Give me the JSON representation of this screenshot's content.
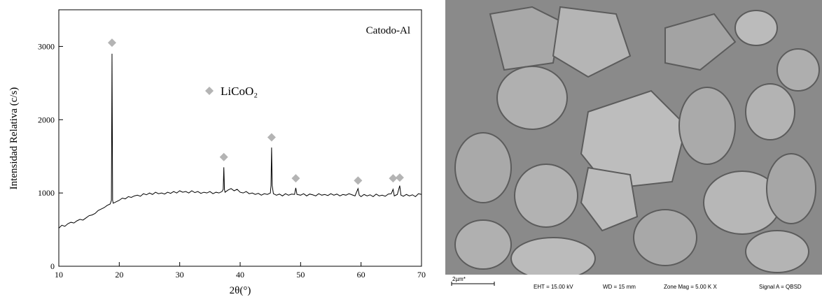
{
  "chart_data": {
    "type": "line",
    "xlabel": "2θ(°)",
    "ylabel": "Intensidad Relativa (c/s)",
    "annotation": "Catodo-Al",
    "xlim": [
      10,
      70
    ],
    "ylim": [
      0,
      3500
    ],
    "xticks": [
      10,
      20,
      30,
      40,
      50,
      60,
      70
    ],
    "yticks": [
      0,
      1000,
      2000,
      3000
    ],
    "legend": "upper center",
    "series": [
      {
        "color": "#000000",
        "x": [
          10,
          10.5,
          11,
          11.5,
          12,
          12.5,
          13,
          13.5,
          14,
          14.5,
          15,
          15.5,
          16,
          16.5,
          17,
          17.5,
          18,
          18.5,
          18.7,
          18.8,
          18.9,
          19,
          19.5,
          20,
          20.5,
          21,
          21.5,
          22,
          22.5,
          23,
          23.5,
          24,
          24.5,
          25,
          25.5,
          26,
          26.5,
          27,
          27.5,
          28,
          28.5,
          29,
          29.5,
          30,
          30.5,
          31,
          31.5,
          32,
          32.5,
          33,
          33.5,
          34,
          34.5,
          35,
          35.5,
          36,
          36.5,
          37,
          37.2,
          37.3,
          37.4,
          37.5,
          38,
          38.5,
          39,
          39.5,
          40,
          40.5,
          41,
          41.5,
          42,
          42.5,
          43,
          43.5,
          44,
          44.5,
          45,
          45.1,
          45.2,
          45.3,
          45.5,
          46,
          46.5,
          47,
          47.5,
          48,
          48.5,
          49,
          49.2,
          49.4,
          50,
          50.5,
          51,
          51.5,
          52,
          52.5,
          53,
          53.5,
          54,
          54.5,
          55,
          55.5,
          56,
          56.5,
          57,
          57.5,
          58,
          58.5,
          59,
          59.5,
          59.7,
          60,
          60.5,
          61,
          61.5,
          62,
          62.5,
          63,
          63.5,
          64,
          64.5,
          65,
          65.3,
          65.5,
          66,
          66.4,
          66.6,
          67,
          67.5,
          68,
          68.5,
          69,
          69.5,
          70
        ],
        "values": [
          520,
          560,
          545,
          580,
          600,
          590,
          620,
          640,
          630,
          660,
          690,
          700,
          720,
          760,
          780,
          800,
          830,
          850,
          900,
          2900,
          900,
          860,
          880,
          900,
          930,
          920,
          950,
          940,
          960,
          970,
          955,
          990,
          975,
          1000,
          980,
          1010,
          990,
          1000,
          985,
          1010,
          995,
          1020,
          1000,
          1030,
          1010,
          1020,
          1000,
          1030,
          1005,
          1020,
          995,
          1010,
          1000,
          1020,
          990,
          1010,
          1000,
          1020,
          1050,
          1350,
          1050,
          1010,
          1040,
          1060,
          1030,
          1050,
          1010,
          1000,
          1020,
          990,
          1000,
          980,
          995,
          970,
          990,
          980,
          1000,
          1100,
          1620,
          1100,
          990,
          970,
          985,
          960,
          990,
          970,
          985,
          980,
          1070,
          980,
          970,
          990,
          960,
          985,
          975,
          960,
          990,
          970,
          980,
          965,
          990,
          970,
          985,
          960,
          980,
          970,
          990,
          975,
          960,
          1060,
          970,
          950,
          980,
          960,
          975,
          950,
          985,
          960,
          970,
          955,
          985,
          990,
          1050,
          960,
          980,
          1100,
          970,
          955,
          980,
          960,
          975,
          950,
          990,
          980
        ]
      },
      {
        "type": "scatter",
        "marker": "diamond",
        "name": "LiCoO₂",
        "color": "#b4b4b4",
        "x": [
          18.8,
          37.3,
          45.2,
          49.2,
          59.5,
          65.3,
          66.4
        ],
        "values": [
          3050,
          1490,
          1760,
          1200,
          1170,
          1200,
          1210
        ]
      }
    ]
  },
  "sem_image": {
    "scale_bar": "2µm*",
    "info": [
      "EHT = 15.00 kV",
      "WD =  15 mm",
      "Zone Mag =  5.00 K X",
      "Signal A = QBSD"
    ]
  }
}
